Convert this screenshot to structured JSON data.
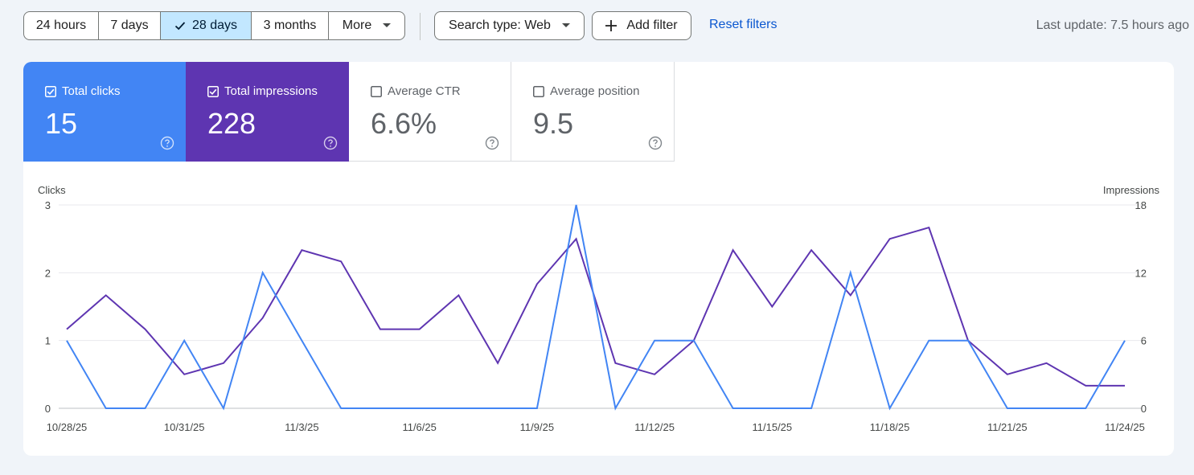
{
  "toolbar": {
    "ranges": [
      "24 hours",
      "7 days",
      "28 days",
      "3 months",
      "More"
    ],
    "active_range": "28 days",
    "search_type": "Search type: Web",
    "add_filter": "Add filter",
    "reset_filters": "Reset filters",
    "last_update": "Last update: 7.5 hours ago"
  },
  "metrics": {
    "clicks": {
      "label": "Total clicks",
      "value": "15",
      "checked": true,
      "color": "#4285f4"
    },
    "impressions": {
      "label": "Total impressions",
      "value": "228",
      "checked": true,
      "color": "#5e35b1"
    },
    "ctr": {
      "label": "Average CTR",
      "value": "6.6%",
      "checked": false
    },
    "position": {
      "label": "Average position",
      "value": "9.5",
      "checked": false
    }
  },
  "colors": {
    "accent": "#0b57d0",
    "active_range_bg": "#c2e7ff"
  },
  "chart_data": {
    "type": "line",
    "ylabel": "Clicks",
    "y2label": "Impressions",
    "ylim": [
      0,
      3
    ],
    "y2lim": [
      0,
      18
    ],
    "yticks": [
      "0",
      "1",
      "2",
      "3"
    ],
    "y2ticks": [
      "0",
      "6",
      "12",
      "18"
    ],
    "xtick_labels": [
      "10/28/25",
      "10/31/25",
      "11/3/25",
      "11/6/25",
      "11/9/25",
      "11/12/25",
      "11/15/25",
      "11/18/25",
      "11/21/25",
      "11/24/25"
    ],
    "x": [
      "10/28/25",
      "10/29/25",
      "10/30/25",
      "10/31/25",
      "11/1/25",
      "11/2/25",
      "11/3/25",
      "11/4/25",
      "11/5/25",
      "11/6/25",
      "11/7/25",
      "11/8/25",
      "11/9/25",
      "11/10/25",
      "11/11/25",
      "11/12/25",
      "11/13/25",
      "11/14/25",
      "11/15/25",
      "11/16/25",
      "11/17/25",
      "11/18/25",
      "11/19/25",
      "11/20/25",
      "11/21/25",
      "11/22/25",
      "11/23/25",
      "11/24/25"
    ],
    "series": [
      {
        "axis": "left",
        "color": "#4285f4",
        "values": [
          1,
          0,
          0,
          1,
          0,
          2,
          1,
          0,
          0,
          0,
          0,
          0,
          0,
          3,
          0,
          1,
          1,
          0,
          0,
          0,
          2,
          0,
          1,
          1,
          0,
          0,
          0,
          1
        ]
      },
      {
        "axis": "right",
        "color": "#5e35b1",
        "values": [
          7,
          10,
          7,
          3,
          4,
          8,
          14,
          13,
          7,
          7,
          10,
          4,
          11,
          15,
          4,
          3,
          6,
          14,
          9,
          14,
          10,
          15,
          16,
          6,
          3,
          4,
          2,
          2
        ]
      }
    ],
    "grid": true
  }
}
